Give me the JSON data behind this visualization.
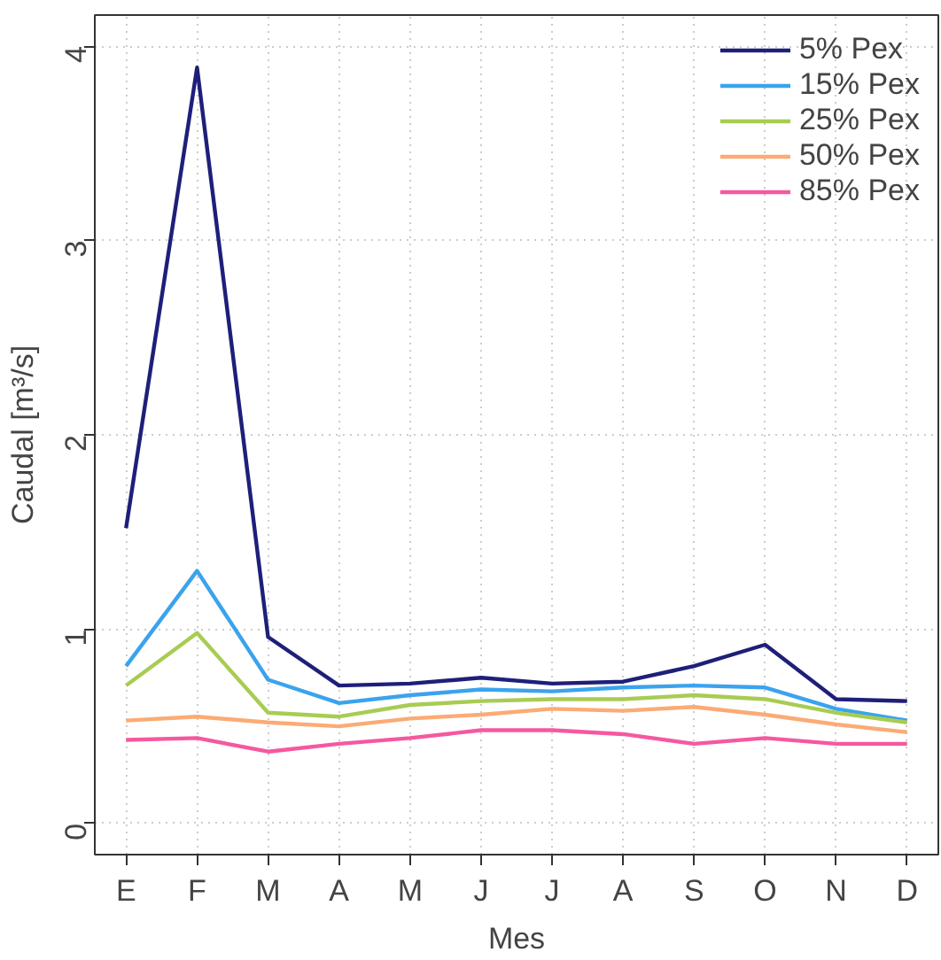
{
  "chart_data": {
    "type": "line",
    "xlabel": "Mes",
    "ylabel": "Caudal [m³/s]",
    "categories": [
      "E",
      "F",
      "M",
      "A",
      "M",
      "J",
      "J",
      "A",
      "S",
      "O",
      "N",
      "D"
    ],
    "ylim": [
      -0.16,
      4.16
    ],
    "yticks": [
      0,
      1,
      2,
      3,
      4
    ],
    "grid": true,
    "legend": "top right",
    "line_style": "solid",
    "series": [
      {
        "name": "5% Pex",
        "color": "#1f1f7a",
        "values": [
          1.52,
          3.89,
          0.96,
          0.71,
          0.72,
          0.75,
          0.72,
          0.73,
          0.81,
          0.92,
          0.64,
          0.63
        ]
      },
      {
        "name": "15% Pex",
        "color": "#3ba3ec",
        "values": [
          0.81,
          1.3,
          0.74,
          0.62,
          0.66,
          0.69,
          0.68,
          0.7,
          0.71,
          0.7,
          0.59,
          0.53
        ]
      },
      {
        "name": "25% Pex",
        "color": "#a8cc52",
        "values": [
          0.71,
          0.98,
          0.57,
          0.55,
          0.61,
          0.63,
          0.64,
          0.64,
          0.66,
          0.64,
          0.57,
          0.52
        ]
      },
      {
        "name": "50% Pex",
        "color": "#fbab75",
        "values": [
          0.53,
          0.55,
          0.52,
          0.5,
          0.54,
          0.56,
          0.59,
          0.58,
          0.6,
          0.56,
          0.51,
          0.47
        ]
      },
      {
        "name": "85% Pex",
        "color": "#f558a0",
        "values": [
          0.43,
          0.44,
          0.37,
          0.41,
          0.44,
          0.48,
          0.48,
          0.46,
          0.41,
          0.44,
          0.41,
          0.41
        ]
      }
    ]
  }
}
